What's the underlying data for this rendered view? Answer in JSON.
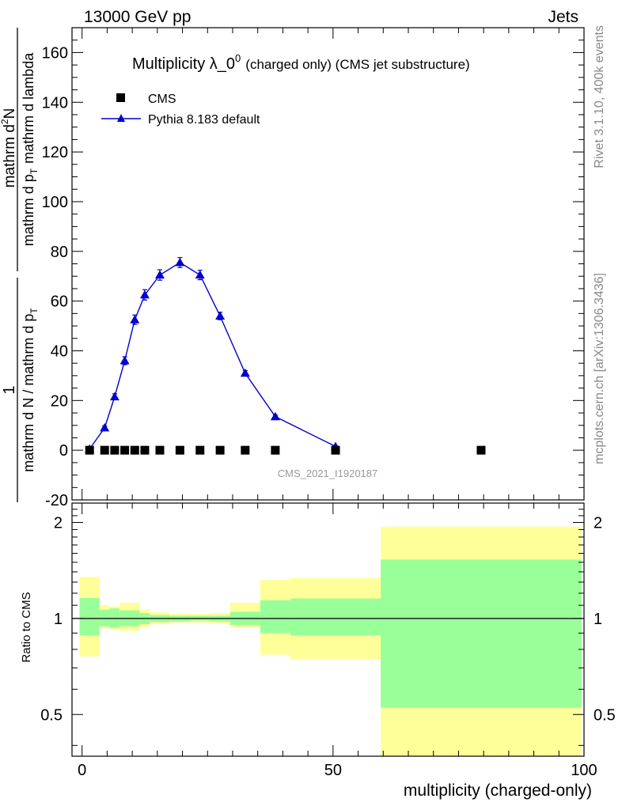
{
  "header": {
    "left": "13000 GeV pp",
    "right": "Jets"
  },
  "side_labels": {
    "rivet": "Rivet 3.1.10,  400k events",
    "mcplots": "mcplots.cern.ch [arXiv:1306.3436]"
  },
  "colors": {
    "pythia": "#0000cc",
    "cms": "#000000",
    "band_inner": "#99ff99",
    "band_outer": "#ffff99"
  },
  "chart_data": [
    {
      "type": "scatter",
      "panel": "main",
      "title_main": "Multiplicity λ_0",
      "title_sup": "0",
      "title_rest": "(charged only) (CMS jet substructure)",
      "watermark": "CMS_2021_I1920187",
      "ylabel_numer": "1",
      "ylabel_denom": "mathrm d N / mathrm d p",
      "ylabel_denom_sub": "T",
      "ylabel_numer2": "mathrm d",
      "ylabel_numer2_sup": "2",
      "ylabel_numer2_rest": "N",
      "ylabel_denom2": "mathrm d p",
      "ylabel_denom2_sub": "T",
      "ylabel_denom2_rest": "mathrm d lambda",
      "xlim": [
        -2,
        100
      ],
      "ylim": [
        -20,
        170
      ],
      "yticks": [
        -20,
        0,
        20,
        40,
        60,
        80,
        100,
        120,
        140,
        160
      ],
      "legend": {
        "position": "top-left",
        "entries": [
          "CMS",
          "Pythia 8.183 default"
        ]
      },
      "series": [
        {
          "name": "CMS",
          "marker": "square",
          "x": [
            1.5,
            4.5,
            6.5,
            8.5,
            10.5,
            12.5,
            15.5,
            19.5,
            23.5,
            27.5,
            32.5,
            38.5,
            50.5,
            79.5
          ],
          "y": [
            0,
            0,
            0,
            0,
            0,
            0,
            0,
            0,
            0,
            0,
            0,
            0,
            0,
            0
          ]
        },
        {
          "name": "Pythia 8.183 default",
          "marker": "triangle",
          "x": [
            1.5,
            4.5,
            6.5,
            8.5,
            10.5,
            12.5,
            15.5,
            19.5,
            23.5,
            27.5,
            32.5,
            38.5,
            50.5
          ],
          "y": [
            0.5,
            9,
            21.5,
            36,
            52.5,
            62.5,
            70.5,
            75.5,
            70.5,
            54,
            31,
            13.5,
            1.5
          ],
          "err": [
            0.3,
            0.8,
            1.2,
            1.6,
            1.9,
            2.1,
            2.1,
            2.0,
            1.9,
            1.5,
            1.0,
            0.6,
            0.2
          ]
        }
      ]
    },
    {
      "type": "area",
      "panel": "ratio",
      "ylabel": "Ratio to CMS",
      "xlabel": "multiplicity (charged-only)",
      "xlim": [
        -2,
        100
      ],
      "ylim": [
        0.37,
        2.3
      ],
      "yscale": "log",
      "yticks": [
        0.5,
        1,
        2
      ],
      "ytick_labels": [
        "0.5",
        "1",
        "2"
      ],
      "xticks": [
        0,
        50,
        100
      ],
      "xtick_labels": [
        "0",
        "50",
        "100"
      ],
      "reference": 1,
      "bands": [
        {
          "x0": -0.5,
          "x1": 3.5,
          "inner_lo": 0.885,
          "inner_hi": 1.16,
          "outer_lo": 0.76,
          "outer_hi": 1.35
        },
        {
          "x0": 3.5,
          "x1": 5.5,
          "inner_lo": 0.945,
          "inner_hi": 1.065,
          "outer_lo": 0.935,
          "outer_hi": 1.1
        },
        {
          "x0": 5.5,
          "x1": 7.5,
          "inner_lo": 0.935,
          "inner_hi": 1.075,
          "outer_lo": 0.925,
          "outer_hi": 1.09
        },
        {
          "x0": 7.5,
          "x1": 11.5,
          "inner_lo": 0.945,
          "inner_hi": 1.06,
          "outer_lo": 0.915,
          "outer_hi": 1.12
        },
        {
          "x0": 11.5,
          "x1": 13.5,
          "inner_lo": 0.96,
          "inner_hi": 1.04,
          "outer_lo": 0.94,
          "outer_hi": 1.07
        },
        {
          "x0": 13.5,
          "x1": 17.5,
          "inner_lo": 0.975,
          "inner_hi": 1.025,
          "outer_lo": 0.96,
          "outer_hi": 1.045
        },
        {
          "x0": 17.5,
          "x1": 21.5,
          "inner_lo": 0.98,
          "inner_hi": 1.02,
          "outer_lo": 0.97,
          "outer_hi": 1.035
        },
        {
          "x0": 21.5,
          "x1": 25.5,
          "inner_lo": 0.985,
          "inner_hi": 1.02,
          "outer_lo": 0.97,
          "outer_hi": 1.035
        },
        {
          "x0": 25.5,
          "x1": 29.5,
          "inner_lo": 0.98,
          "inner_hi": 1.02,
          "outer_lo": 0.965,
          "outer_hi": 1.04
        },
        {
          "x0": 29.5,
          "x1": 35.5,
          "inner_lo": 0.955,
          "inner_hi": 1.05,
          "outer_lo": 0.935,
          "outer_hi": 1.12
        },
        {
          "x0": 35.5,
          "x1": 41.5,
          "inner_lo": 0.9,
          "inner_hi": 1.14,
          "outer_lo": 0.77,
          "outer_hi": 1.32
        },
        {
          "x0": 41.5,
          "x1": 59.5,
          "inner_lo": 0.885,
          "inner_hi": 1.155,
          "outer_lo": 0.745,
          "outer_hi": 1.34
        },
        {
          "x0": 59.5,
          "x1": 99.5,
          "inner_lo": 0.525,
          "inner_hi": 1.53,
          "outer_lo": 0.37,
          "outer_hi": 1.94
        }
      ]
    }
  ]
}
